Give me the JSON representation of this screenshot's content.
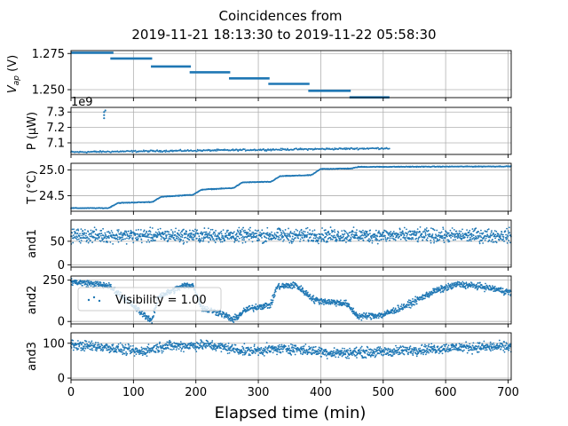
{
  "figure": {
    "title_line1": "Coincidences from",
    "title_line2": "2019-11-21 18:13:30 to 2019-11-22 05:58:30"
  },
  "chart_data": [
    {
      "id": "vap",
      "type": "scatter",
      "ylabel_main": "V",
      "ylabel_sub": "ap",
      "ylabel_suffix": " (V)",
      "ylim": [
        1.2445,
        1.277
      ],
      "yticks": [
        1.25,
        1.275
      ],
      "ytick_labels": [
        "1.250",
        "1.275"
      ],
      "xlim": [
        0,
        705
      ],
      "segments": [
        {
          "x": [
            0,
            68
          ],
          "y": 1.2755
        },
        {
          "x": [
            63,
            130
          ],
          "y": 1.2715
        },
        {
          "x": [
            128,
            192
          ],
          "y": 1.266
        },
        {
          "x": [
            190,
            255
          ],
          "y": 1.262
        },
        {
          "x": [
            253,
            318
          ],
          "y": 1.2578
        },
        {
          "x": [
            316,
            382
          ],
          "y": 1.254
        },
        {
          "x": [
            380,
            448
          ],
          "y": 1.2492
        },
        {
          "x": [
            446,
            510
          ],
          "y": 1.2447
        }
      ],
      "color": "#1f77b4"
    },
    {
      "id": "power",
      "type": "scatter",
      "ylabel": "P (μW)",
      "offset_text": "1e9",
      "ylim": [
        7.025,
        7.33
      ],
      "yticks": [
        7.1,
        7.2,
        7.3
      ],
      "ytick_labels": [
        "7.1",
        "7.2",
        "7.3"
      ],
      "xlim": [
        0,
        705
      ],
      "trend_x": [
        0,
        100,
        200,
        300,
        400,
        510
      ],
      "trend_y": [
        7.04,
        7.045,
        7.05,
        7.055,
        7.06,
        7.065
      ],
      "outliers": [
        {
          "x": 53,
          "y": 7.3
        },
        {
          "x": 53,
          "y": 7.28
        },
        {
          "x": 53,
          "y": 7.26
        },
        {
          "x": 55,
          "y": 7.31
        }
      ],
      "color": "#1f77b4"
    },
    {
      "id": "temp",
      "type": "scatter",
      "ylabel": "T (°C)",
      "ylim": [
        24.2,
        25.13
      ],
      "yticks": [
        24.5,
        25.0
      ],
      "ytick_labels": [
        "24.5",
        "25.0"
      ],
      "xlim": [
        0,
        705
      ],
      "x": [
        0,
        60,
        75,
        130,
        145,
        195,
        210,
        260,
        275,
        320,
        335,
        385,
        400,
        450,
        460,
        705
      ],
      "y": [
        24.26,
        24.26,
        24.36,
        24.38,
        24.48,
        24.52,
        24.62,
        24.65,
        24.76,
        24.77,
        24.88,
        24.9,
        25.02,
        25.03,
        25.06,
        25.07
      ],
      "color": "#1f77b4"
    },
    {
      "id": "and1",
      "type": "scatter",
      "ylabel": "and1",
      "ylim": [
        -5,
        95
      ],
      "yticks": [
        0,
        50
      ],
      "ytick_labels": [
        "0",
        "50"
      ],
      "xlim": [
        0,
        705
      ],
      "x": [
        0,
        705
      ],
      "y": [
        62,
        62
      ],
      "noise": 10,
      "color": "#1f77b4"
    },
    {
      "id": "and2",
      "type": "scatter",
      "ylabel": "and2",
      "ylim": [
        -15,
        275
      ],
      "yticks": [
        0,
        250
      ],
      "ytick_labels": [
        "0",
        "250"
      ],
      "xlim": [
        0,
        705
      ],
      "x": [
        0,
        30,
        60,
        90,
        110,
        130,
        140,
        180,
        195,
        210,
        240,
        260,
        280,
        300,
        320,
        330,
        360,
        390,
        410,
        440,
        460,
        500,
        540,
        580,
        620,
        660,
        705
      ],
      "y": [
        240,
        230,
        215,
        130,
        60,
        5,
        150,
        215,
        220,
        80,
        50,
        10,
        70,
        90,
        100,
        210,
        220,
        130,
        120,
        110,
        30,
        40,
        100,
        180,
        225,
        210,
        175
      ],
      "noise": 14,
      "legend_label": "Visibility = 1.00",
      "legend_loc": "center-left",
      "color": "#1f77b4"
    },
    {
      "id": "and3",
      "type": "scatter",
      "ylabel": "and3",
      "ylim": [
        -5,
        130
      ],
      "yticks": [
        0,
        100
      ],
      "ytick_labels": [
        "0",
        "100"
      ],
      "xlim": [
        0,
        705
      ],
      "x": [
        0,
        50,
        110,
        150,
        220,
        280,
        350,
        420,
        500,
        560,
        620,
        705
      ],
      "y": [
        95,
        90,
        75,
        92,
        95,
        78,
        85,
        72,
        75,
        82,
        88,
        90
      ],
      "noise": 10,
      "color": "#1f77b4"
    }
  ],
  "xaxis": {
    "label": "Elapsed time (min)",
    "xlim": [
      0,
      705
    ],
    "ticks": [
      0,
      100,
      200,
      300,
      400,
      500,
      600,
      700
    ],
    "tick_labels": [
      "0",
      "100",
      "200",
      "300",
      "400",
      "500",
      "600",
      "700"
    ],
    "grid": true
  }
}
